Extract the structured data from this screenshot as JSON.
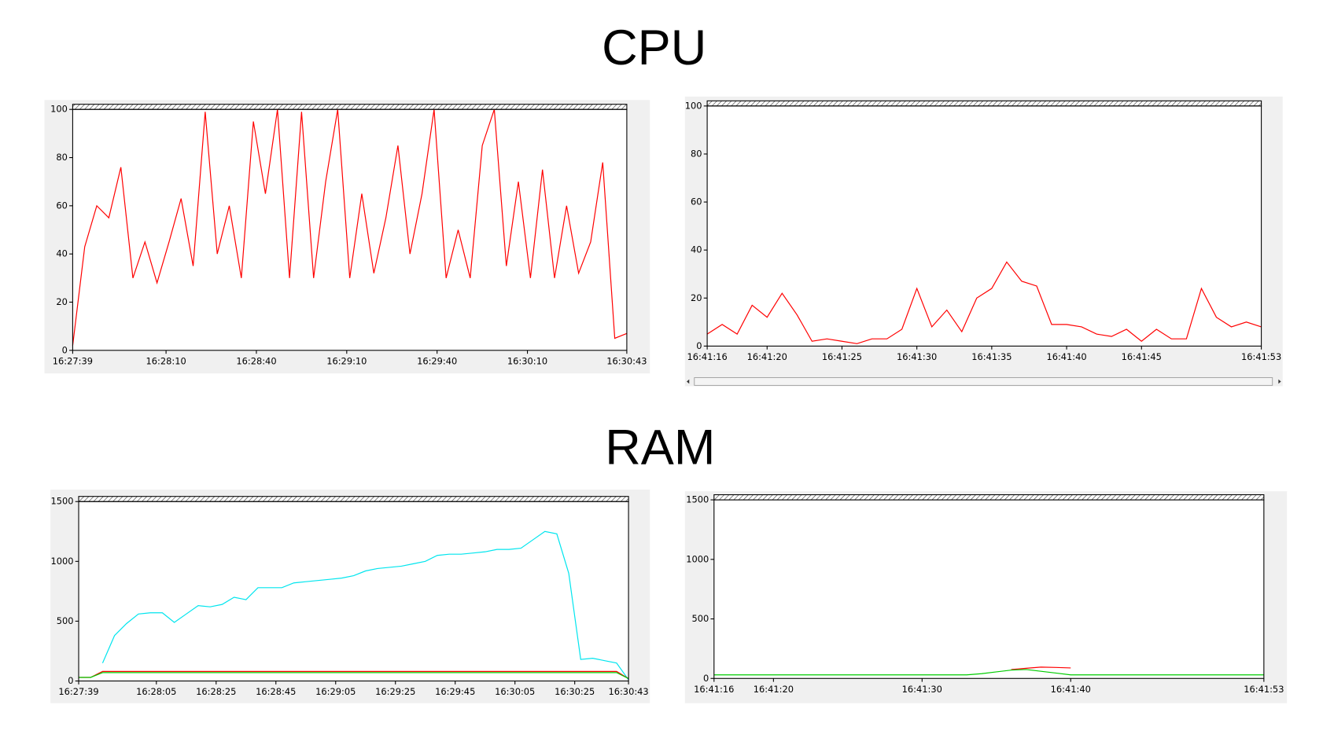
{
  "sections": [
    {
      "title": "CPU"
    },
    {
      "title": "RAM"
    }
  ],
  "chart_data": [
    {
      "type": "line",
      "x": [
        "16:27:39",
        "16:27:43",
        "16:27:47",
        "16:27:51",
        "16:27:55",
        "16:27:59",
        "16:28:03",
        "16:28:07",
        "16:28:11",
        "16:28:15",
        "16:28:19",
        "16:28:23",
        "16:28:27",
        "16:28:31",
        "16:28:35",
        "16:28:39",
        "16:28:43",
        "16:28:47",
        "16:28:51",
        "16:28:55",
        "16:28:59",
        "16:29:03",
        "16:29:07",
        "16:29:11",
        "16:29:15",
        "16:29:19",
        "16:29:23",
        "16:29:27",
        "16:29:31",
        "16:29:35",
        "16:29:39",
        "16:29:43",
        "16:29:47",
        "16:29:51",
        "16:29:55",
        "16:29:59",
        "16:30:03",
        "16:30:07",
        "16:30:11",
        "16:30:15",
        "16:30:19",
        "16:30:23",
        "16:30:27",
        "16:30:31",
        "16:30:35",
        "16:30:39",
        "16:30:43"
      ],
      "series": [
        {
          "color": "#ff0000",
          "values": [
            2,
            43,
            60,
            55,
            76,
            30,
            45,
            28,
            45,
            63,
            35,
            99,
            40,
            60,
            30,
            95,
            65,
            100,
            30,
            99,
            30,
            70,
            100,
            30,
            65,
            32,
            55,
            85,
            40,
            65,
            100,
            30,
            50,
            30,
            85,
            100,
            35,
            70,
            30,
            75,
            30,
            60,
            32,
            45,
            78,
            5,
            7
          ]
        }
      ],
      "xlim": [
        "16:27:39",
        "16:30:43"
      ],
      "xticks": [
        "16:27:39",
        "16:28:10",
        "16:28:40",
        "16:29:10",
        "16:29:40",
        "16:30:10",
        "16:30:43"
      ],
      "ylim": [
        0,
        100
      ],
      "yticks": [
        0,
        20,
        40,
        60,
        80,
        100
      ]
    },
    {
      "type": "line",
      "x": [
        "16:41:16",
        "16:41:17",
        "16:41:18",
        "16:41:19",
        "16:41:20",
        "16:41:21",
        "16:41:22",
        "16:41:23",
        "16:41:24",
        "16:41:25",
        "16:41:26",
        "16:41:27",
        "16:41:28",
        "16:41:29",
        "16:41:30",
        "16:41:31",
        "16:41:32",
        "16:41:33",
        "16:41:34",
        "16:41:35",
        "16:41:36",
        "16:41:37",
        "16:41:38",
        "16:41:39",
        "16:41:40",
        "16:41:41",
        "16:41:42",
        "16:41:43",
        "16:41:44",
        "16:41:45",
        "16:41:46",
        "16:41:47",
        "16:41:48",
        "16:41:49",
        "16:41:50",
        "16:41:51",
        "16:41:52",
        "16:41:53"
      ],
      "series": [
        {
          "color": "#ff0000",
          "values": [
            5,
            9,
            5,
            17,
            12,
            22,
            13,
            2,
            3,
            2,
            1,
            3,
            3,
            7,
            24,
            8,
            15,
            6,
            20,
            24,
            35,
            27,
            25,
            9,
            9,
            8,
            5,
            4,
            7,
            2,
            7,
            3,
            3,
            24,
            12,
            8,
            10,
            8
          ]
        }
      ],
      "xlim": [
        "16:41:16",
        "16:41:53"
      ],
      "xticks": [
        "16:41:16",
        "16:41:20",
        "16:41:25",
        "16:41:30",
        "16:41:35",
        "16:41:40",
        "16:41:45",
        "16:41:53"
      ],
      "ylim": [
        0,
        100
      ],
      "yticks": [
        0,
        20,
        40,
        60,
        80,
        100
      ]
    },
    {
      "type": "line",
      "x": [
        "16:27:39",
        "16:27:43",
        "16:27:47",
        "16:27:51",
        "16:27:55",
        "16:27:59",
        "16:28:03",
        "16:28:07",
        "16:28:11",
        "16:28:15",
        "16:28:19",
        "16:28:23",
        "16:28:27",
        "16:28:31",
        "16:28:35",
        "16:28:39",
        "16:28:43",
        "16:28:47",
        "16:28:51",
        "16:28:55",
        "16:28:59",
        "16:29:03",
        "16:29:07",
        "16:29:11",
        "16:29:15",
        "16:29:19",
        "16:29:23",
        "16:29:27",
        "16:29:31",
        "16:29:35",
        "16:29:39",
        "16:29:43",
        "16:29:47",
        "16:29:51",
        "16:29:55",
        "16:29:59",
        "16:30:03",
        "16:30:07",
        "16:30:11",
        "16:30:15",
        "16:30:19",
        "16:30:23",
        "16:30:27",
        "16:30:31",
        "16:30:35",
        "16:30:39",
        "16:30:43"
      ],
      "series": [
        {
          "color": "#00e5ee",
          "values": [
            null,
            null,
            150,
            380,
            480,
            560,
            570,
            570,
            490,
            560,
            630,
            620,
            640,
            700,
            680,
            780,
            780,
            780,
            820,
            830,
            840,
            850,
            860,
            880,
            920,
            940,
            950,
            960,
            980,
            1000,
            1050,
            1060,
            1060,
            1070,
            1080,
            1100,
            1100,
            1110,
            1180,
            1250,
            1230,
            900,
            180,
            190,
            170,
            150,
            10
          ]
        },
        {
          "color": "#ff0000",
          "values": [
            30,
            30,
            80,
            80,
            80,
            80,
            80,
            80,
            80,
            80,
            80,
            80,
            80,
            80,
            80,
            80,
            80,
            80,
            80,
            80,
            80,
            80,
            80,
            80,
            80,
            80,
            80,
            80,
            80,
            80,
            80,
            80,
            80,
            80,
            80,
            80,
            80,
            80,
            80,
            80,
            80,
            80,
            80,
            80,
            80,
            80,
            20
          ]
        },
        {
          "color": "#00cc00",
          "values": [
            30,
            30,
            70,
            70,
            70,
            70,
            70,
            70,
            70,
            70,
            70,
            70,
            70,
            70,
            70,
            70,
            70,
            70,
            70,
            70,
            70,
            70,
            70,
            70,
            70,
            70,
            70,
            70,
            70,
            70,
            70,
            70,
            70,
            70,
            70,
            70,
            70,
            70,
            70,
            70,
            70,
            70,
            70,
            70,
            70,
            70,
            20
          ]
        }
      ],
      "xlim": [
        "16:27:39",
        "16:30:43"
      ],
      "xticks": [
        "16:27:39",
        "16:28:05",
        "16:28:25",
        "16:28:45",
        "16:29:05",
        "16:29:25",
        "16:29:45",
        "16:30:05",
        "16:30:25",
        "16:30:43"
      ],
      "ylim": [
        0,
        1500
      ],
      "yticks": [
        0,
        500,
        1000,
        1500
      ]
    },
    {
      "type": "line",
      "x": [
        "16:41:16",
        "16:41:17",
        "16:41:18",
        "16:41:19",
        "16:41:20",
        "16:41:21",
        "16:41:22",
        "16:41:23",
        "16:41:24",
        "16:41:25",
        "16:41:26",
        "16:41:27",
        "16:41:28",
        "16:41:29",
        "16:41:30",
        "16:41:31",
        "16:41:32",
        "16:41:33",
        "16:41:34",
        "16:41:35",
        "16:41:36",
        "16:41:37",
        "16:41:38",
        "16:41:39",
        "16:41:40",
        "16:41:41",
        "16:41:42",
        "16:41:43",
        "16:41:44",
        "16:41:45",
        "16:41:46",
        "16:41:47",
        "16:41:48",
        "16:41:49",
        "16:41:50",
        "16:41:51",
        "16:41:52",
        "16:41:53"
      ],
      "series": [
        {
          "color": "#ff0000",
          "values": [
            null,
            null,
            null,
            null,
            null,
            null,
            null,
            null,
            null,
            null,
            null,
            null,
            null,
            null,
            null,
            null,
            null,
            null,
            null,
            null,
            75,
            85,
            95,
            92,
            88,
            null,
            null,
            null,
            null,
            null,
            null,
            null,
            null,
            null,
            null,
            null,
            null,
            null
          ]
        },
        {
          "color": "#00cc00",
          "values": [
            30,
            30,
            30,
            30,
            30,
            30,
            30,
            30,
            30,
            30,
            30,
            30,
            30,
            30,
            30,
            30,
            30,
            30,
            40,
            55,
            70,
            75,
            60,
            45,
            30,
            30,
            30,
            30,
            30,
            30,
            30,
            30,
            30,
            30,
            30,
            30,
            30,
            30
          ]
        }
      ],
      "xlim": [
        "16:41:16",
        "16:41:53"
      ],
      "xticks": [
        "16:41:16",
        "16:41:20",
        "16:41:30",
        "16:41:40",
        "16:41:53"
      ],
      "ylim": [
        0,
        1500
      ],
      "yticks": [
        0,
        500,
        1000,
        1500
      ]
    }
  ]
}
